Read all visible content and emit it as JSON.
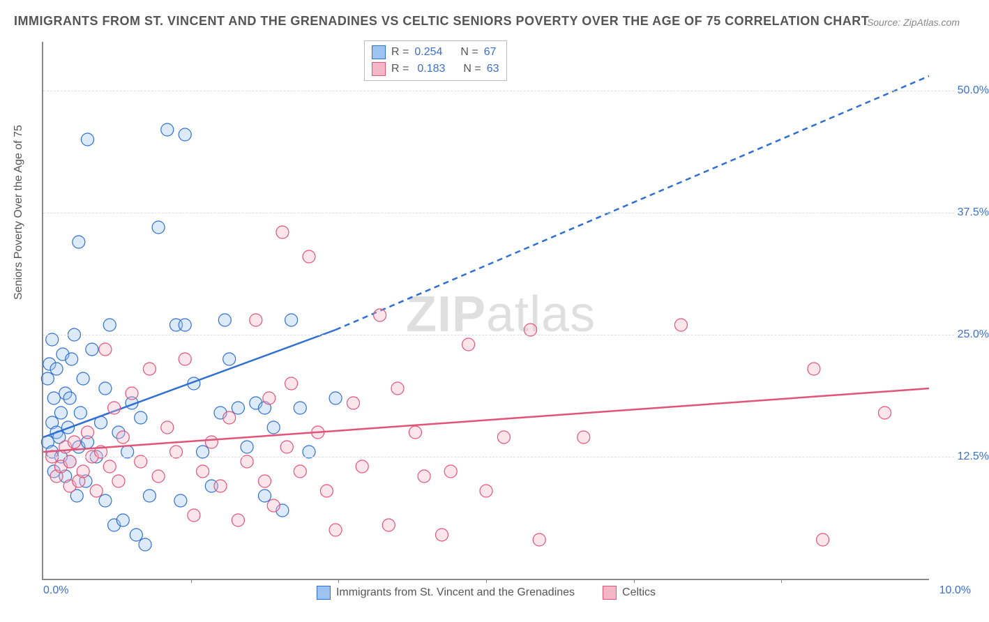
{
  "title": "IMMIGRANTS FROM ST. VINCENT AND THE GRENADINES VS CELTIC SENIORS POVERTY OVER THE AGE OF 75 CORRELATION CHART",
  "source_label": "Source:",
  "source_value": "ZipAtlas.com",
  "watermark_a": "ZIP",
  "watermark_b": "atlas",
  "chart": {
    "type": "scatter-correlation",
    "xlim": [
      0,
      10
    ],
    "ylim": [
      0,
      55
    ],
    "x_tick_left": "0.0%",
    "x_tick_right": "10.0%",
    "y_ticks": [
      {
        "v": 12.5,
        "label": "12.5%"
      },
      {
        "v": 25.0,
        "label": "25.0%"
      },
      {
        "v": 37.5,
        "label": "37.5%"
      },
      {
        "v": 50.0,
        "label": "50.0%"
      }
    ],
    "x_minor_ticks_pct": [
      16.67,
      33.33,
      50,
      66.67,
      83.33
    ],
    "y_axis_label": "Seniors Poverty Over the Age of 75",
    "grid_color": "#dddddd",
    "background_color": "#ffffff",
    "marker_radius": 9,
    "marker_fill_opacity": 0.35,
    "marker_stroke_width": 1.2,
    "series": [
      {
        "id": "immigrants",
        "legend_label": "Immigrants from St. Vincent and the Grenadines",
        "color_stroke": "#2f6fd0",
        "color_fill": "#9dc3f0",
        "R_label": "R =",
        "R_value": "0.254",
        "N_label": "N =",
        "N_value": "67",
        "regression": {
          "x1": 0,
          "y1": 14.5,
          "x2_solid": 3.3,
          "y2_solid": 25.5,
          "x2_dash": 10,
          "y2_dash": 51.5,
          "stroke_width": 2.5,
          "dash": "8 6"
        },
        "points": [
          [
            0.05,
            14.0
          ],
          [
            0.05,
            20.5
          ],
          [
            0.07,
            22.0
          ],
          [
            0.1,
            16.0
          ],
          [
            0.1,
            13.0
          ],
          [
            0.1,
            24.5
          ],
          [
            0.12,
            11.0
          ],
          [
            0.12,
            18.5
          ],
          [
            0.15,
            21.5
          ],
          [
            0.15,
            15.0
          ],
          [
            0.18,
            14.5
          ],
          [
            0.2,
            17.0
          ],
          [
            0.2,
            12.5
          ],
          [
            0.22,
            23.0
          ],
          [
            0.25,
            19.0
          ],
          [
            0.25,
            10.5
          ],
          [
            0.28,
            15.5
          ],
          [
            0.3,
            12.0
          ],
          [
            0.3,
            18.5
          ],
          [
            0.32,
            22.5
          ],
          [
            0.35,
            25.0
          ],
          [
            0.38,
            8.5
          ],
          [
            0.4,
            13.5
          ],
          [
            0.4,
            34.5
          ],
          [
            0.42,
            17.0
          ],
          [
            0.45,
            20.5
          ],
          [
            0.48,
            10.0
          ],
          [
            0.5,
            14.0
          ],
          [
            0.5,
            45.0
          ],
          [
            0.55,
            23.5
          ],
          [
            0.6,
            12.5
          ],
          [
            0.65,
            16.0
          ],
          [
            0.7,
            8.0
          ],
          [
            0.7,
            19.5
          ],
          [
            0.75,
            26.0
          ],
          [
            0.8,
            5.5
          ],
          [
            0.85,
            15.0
          ],
          [
            0.9,
            6.0
          ],
          [
            0.95,
            13.0
          ],
          [
            1.0,
            18.0
          ],
          [
            1.05,
            4.5
          ],
          [
            1.1,
            16.5
          ],
          [
            1.15,
            3.5
          ],
          [
            1.2,
            8.5
          ],
          [
            1.3,
            36.0
          ],
          [
            1.4,
            46.0
          ],
          [
            1.5,
            26.0
          ],
          [
            1.55,
            8.0
          ],
          [
            1.6,
            45.5
          ],
          [
            1.6,
            26.0
          ],
          [
            1.7,
            20.0
          ],
          [
            1.8,
            13.0
          ],
          [
            1.9,
            9.5
          ],
          [
            2.0,
            17.0
          ],
          [
            2.05,
            26.5
          ],
          [
            2.1,
            22.5
          ],
          [
            2.2,
            17.5
          ],
          [
            2.3,
            13.5
          ],
          [
            2.4,
            18.0
          ],
          [
            2.5,
            17.5
          ],
          [
            2.5,
            8.5
          ],
          [
            2.6,
            15.5
          ],
          [
            2.7,
            7.0
          ],
          [
            2.8,
            26.5
          ],
          [
            2.9,
            17.5
          ],
          [
            3.0,
            13.0
          ],
          [
            3.3,
            18.5
          ]
        ]
      },
      {
        "id": "celtics",
        "legend_label": "Celtics",
        "color_stroke": "#e15377",
        "color_fill": "#f5b7c8",
        "R_label": "R =",
        "R_value": "0.183",
        "N_label": "N =",
        "N_value": "63",
        "regression": {
          "x1": 0,
          "y1": 13.0,
          "x2_solid": 10,
          "y2_solid": 19.5,
          "x2_dash": 10,
          "y2_dash": 19.5,
          "stroke_width": 2.5,
          "dash": ""
        },
        "points": [
          [
            0.1,
            12.5
          ],
          [
            0.15,
            10.5
          ],
          [
            0.2,
            11.5
          ],
          [
            0.25,
            13.5
          ],
          [
            0.3,
            9.5
          ],
          [
            0.3,
            12.0
          ],
          [
            0.35,
            14.0
          ],
          [
            0.4,
            10.0
          ],
          [
            0.45,
            11.0
          ],
          [
            0.5,
            15.0
          ],
          [
            0.55,
            12.5
          ],
          [
            0.6,
            9.0
          ],
          [
            0.65,
            13.0
          ],
          [
            0.7,
            23.5
          ],
          [
            0.75,
            11.5
          ],
          [
            0.8,
            17.5
          ],
          [
            0.85,
            10.0
          ],
          [
            0.9,
            14.5
          ],
          [
            1.0,
            19.0
          ],
          [
            1.1,
            12.0
          ],
          [
            1.2,
            21.5
          ],
          [
            1.3,
            10.5
          ],
          [
            1.4,
            15.5
          ],
          [
            1.5,
            13.0
          ],
          [
            1.6,
            22.5
          ],
          [
            1.7,
            6.5
          ],
          [
            1.8,
            11.0
          ],
          [
            1.9,
            14.0
          ],
          [
            2.0,
            9.5
          ],
          [
            2.1,
            16.5
          ],
          [
            2.2,
            6.0
          ],
          [
            2.3,
            12.0
          ],
          [
            2.4,
            26.5
          ],
          [
            2.5,
            10.0
          ],
          [
            2.55,
            18.5
          ],
          [
            2.6,
            7.5
          ],
          [
            2.7,
            35.5
          ],
          [
            2.75,
            13.5
          ],
          [
            2.8,
            20.0
          ],
          [
            2.9,
            11.0
          ],
          [
            3.0,
            33.0
          ],
          [
            3.1,
            15.0
          ],
          [
            3.2,
            9.0
          ],
          [
            3.3,
            5.0
          ],
          [
            3.5,
            18.0
          ],
          [
            3.6,
            11.5
          ],
          [
            3.8,
            27.0
          ],
          [
            3.9,
            5.5
          ],
          [
            4.0,
            19.5
          ],
          [
            4.2,
            15.0
          ],
          [
            4.3,
            10.5
          ],
          [
            4.5,
            4.5
          ],
          [
            4.6,
            11.0
          ],
          [
            4.8,
            24.0
          ],
          [
            5.0,
            9.0
          ],
          [
            5.2,
            14.5
          ],
          [
            5.5,
            25.5
          ],
          [
            5.6,
            4.0
          ],
          [
            6.1,
            14.5
          ],
          [
            7.2,
            26.0
          ],
          [
            8.7,
            21.5
          ],
          [
            8.8,
            4.0
          ],
          [
            9.5,
            17.0
          ]
        ]
      }
    ]
  }
}
